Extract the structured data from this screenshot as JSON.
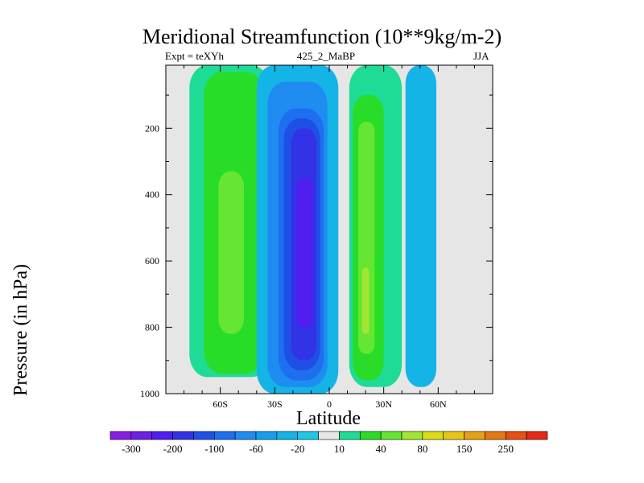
{
  "chart_data": {
    "type": "contour",
    "title": "Meridional Streamfunction (10**9kg/m-2)",
    "left_string": "Expt = teXYh",
    "center_string": "425_2_MaBP",
    "right_string": "JJA",
    "xlabel": "Latitude",
    "ylabel": "Pressure (in hPa)",
    "xlim": [
      -90,
      90
    ],
    "ylim": [
      1000,
      10
    ],
    "y_reversed": true,
    "x_ticks": [
      {
        "value": -60,
        "label": "60S"
      },
      {
        "value": -30,
        "label": "30S"
      },
      {
        "value": 0,
        "label": "0"
      },
      {
        "value": 30,
        "label": "30N"
      },
      {
        "value": 60,
        "label": "60N"
      }
    ],
    "y_ticks": [
      {
        "value": 200,
        "label": "200"
      },
      {
        "value": 400,
        "label": "400"
      },
      {
        "value": 600,
        "label": "600"
      },
      {
        "value": 800,
        "label": "800"
      },
      {
        "value": 1000,
        "label": "1000"
      }
    ],
    "missing_color": "#e6e6e6",
    "colorbar": {
      "levels": [
        -300,
        -250,
        -200,
        -150,
        -100,
        -80,
        -60,
        -40,
        -20,
        -10,
        10,
        20,
        40,
        60,
        80,
        100,
        150,
        200,
        250,
        300
      ],
      "colors": [
        "#8a1ee6",
        "#6e1ee6",
        "#501ef0",
        "#3232e6",
        "#1e50e6",
        "#1e6ef0",
        "#1e8cf0",
        "#14a0f0",
        "#14b4e6",
        "#1ec8e6",
        "#e6e6e6",
        "#1edc96",
        "#28dc28",
        "#64e632",
        "#a0e632",
        "#dcdc14",
        "#e6c814",
        "#e6a014",
        "#e67814",
        "#e65014",
        "#e62814"
      ],
      "labels": [
        {
          "level_index": 0,
          "text": "-300"
        },
        {
          "level_index": 2,
          "text": "-200"
        },
        {
          "level_index": 4,
          "text": "-100"
        },
        {
          "level_index": 6,
          "text": "-60"
        },
        {
          "level_index": 8,
          "text": "-20"
        },
        {
          "level_index": 10,
          "text": "10"
        },
        {
          "level_index": 12,
          "text": "40"
        },
        {
          "level_index": 14,
          "text": "80"
        },
        {
          "level_index": 16,
          "text": "150"
        },
        {
          "level_index": 18,
          "text": "250"
        }
      ]
    },
    "cells": [
      {
        "name": "sh-positive-cell",
        "sign": "positive",
        "bands": [
          {
            "color": "#1edc96",
            "lat": [
              -77,
              -33
            ],
            "p_top": 10,
            "p_bot": 950
          },
          {
            "color": "#28dc28",
            "lat": [
              -69,
              -36
            ],
            "p_top": 30,
            "p_bot": 940
          },
          {
            "color": "#64e632",
            "lat": [
              -61,
              -47
            ],
            "p_top": 330,
            "p_bot": 820
          }
        ]
      },
      {
        "name": "tropical-negative-cell",
        "sign": "negative",
        "bands": [
          {
            "color": "#14b4e6",
            "lat": [
              -40,
              5
            ],
            "p_top": 10,
            "p_bot": 1000
          },
          {
            "color": "#1e8cf0",
            "lat": [
              -34,
              -1
            ],
            "p_top": 60,
            "p_bot": 980
          },
          {
            "color": "#1e6ef0",
            "lat": [
              -28,
              -3
            ],
            "p_top": 140,
            "p_bot": 960
          },
          {
            "color": "#1e50e6",
            "lat": [
              -25,
              -5
            ],
            "p_top": 170,
            "p_bot": 930
          },
          {
            "color": "#3232e6",
            "lat": [
              -21,
              -7
            ],
            "p_top": 200,
            "p_bot": 900
          },
          {
            "color": "#501ef0",
            "lat": [
              -18,
              -9
            ],
            "p_top": 350,
            "p_bot": 800
          }
        ]
      },
      {
        "name": "nh-positive-cell",
        "sign": "positive",
        "bands": [
          {
            "color": "#1edc96",
            "lat": [
              11,
              40
            ],
            "p_top": 10,
            "p_bot": 980
          },
          {
            "color": "#28dc28",
            "lat": [
              13,
              30
            ],
            "p_top": 100,
            "p_bot": 960
          },
          {
            "color": "#64e632",
            "lat": [
              16,
              25
            ],
            "p_top": 180,
            "p_bot": 880
          },
          {
            "color": "#a0e632",
            "lat": [
              18,
              22
            ],
            "p_top": 620,
            "p_bot": 820
          }
        ]
      },
      {
        "name": "nh-negative-cell",
        "sign": "negative",
        "bands": [
          {
            "color": "#14b4e6",
            "lat": [
              42,
              59
            ],
            "p_top": 10,
            "p_bot": 980
          }
        ]
      }
    ]
  }
}
